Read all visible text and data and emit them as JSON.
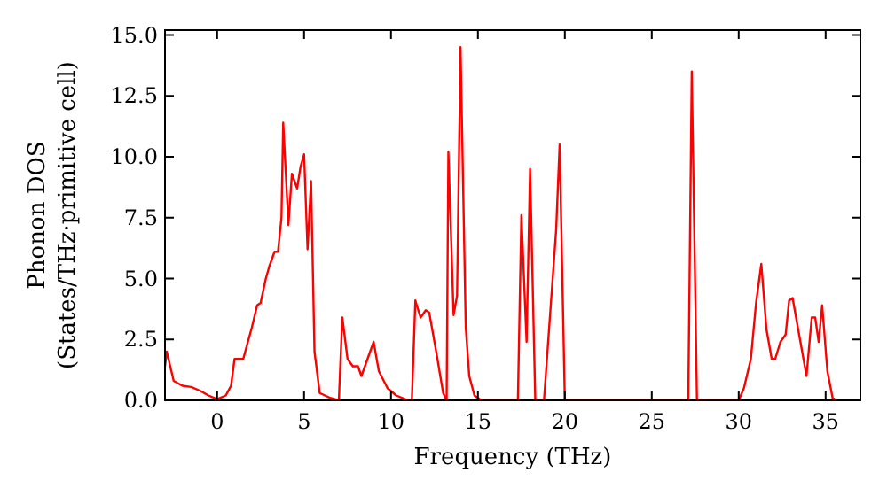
{
  "chart_data": {
    "type": "line",
    "xlabel": "Frequency (THz)",
    "ylabel": "Phonon DOS\n(States/THz·primitive cell)",
    "xlim": [
      -3,
      37
    ],
    "ylim": [
      0,
      15.2
    ],
    "xticks": [
      0,
      5,
      10,
      15,
      20,
      25,
      30,
      35
    ],
    "yticks": [
      {
        "value": 0,
        "label": "0.0"
      },
      {
        "value": 2.5,
        "label": "2.5"
      },
      {
        "value": 5,
        "label": "5.0"
      },
      {
        "value": 7.5,
        "label": "7.5"
      },
      {
        "value": 10,
        "label": "10.0"
      },
      {
        "value": 12.5,
        "label": "12.5"
      },
      {
        "value": 15,
        "label": "15.0"
      }
    ],
    "grid": false,
    "marker": "none",
    "line_style": "solid",
    "series": [
      {
        "color": "#ff0000",
        "x": [
          -3,
          -2.9,
          -2.5,
          -2,
          -1.5,
          -1,
          -0.5,
          0,
          0.5,
          0.8,
          1,
          1.5,
          2,
          2.3,
          2.5,
          2.8,
          3,
          3.3,
          3.5,
          3.7,
          3.8,
          4.1,
          4.3,
          4.6,
          4.8,
          5,
          5.2,
          5.4,
          5.6,
          5.9,
          6.5,
          7,
          7.2,
          7.5,
          7.8,
          8.1,
          8.3,
          9,
          9.3,
          9.8,
          10.3,
          11,
          11.2,
          11.4,
          11.7,
          12,
          12.2,
          12.6,
          13,
          13.2,
          13.3,
          13.6,
          13.8,
          14,
          14.3,
          14.5,
          14.8,
          15.2,
          17.3,
          17.5,
          17.8,
          18,
          18.3,
          18.8,
          19.5,
          19.7,
          20,
          27.1,
          27.3,
          27.6,
          30,
          30.3,
          30.7,
          31,
          31.3,
          31.6,
          31.9,
          32.1,
          32.4,
          32.7,
          32.9,
          33.1,
          33.5,
          33.9,
          34.2,
          34.4,
          34.6,
          34.8,
          35.1,
          35.4,
          35.6
        ],
        "values": [
          1.4,
          2,
          0.8,
          0.6,
          0.55,
          0.4,
          0.2,
          0.05,
          0.2,
          0.6,
          1.7,
          1.7,
          3,
          3.9,
          4,
          5,
          5.5,
          6.1,
          6.1,
          7.5,
          11.4,
          7.2,
          9.3,
          8.7,
          9.6,
          10.1,
          6.2,
          9,
          2,
          0.3,
          0.1,
          0,
          3.4,
          1.7,
          1.4,
          1.4,
          1,
          2.4,
          1.2,
          0.5,
          0.2,
          0,
          0,
          4.1,
          3.4,
          3.7,
          3.6,
          2,
          0.3,
          0,
          10.2,
          3.5,
          4.3,
          14.5,
          3,
          1,
          0.2,
          0,
          0,
          7.6,
          2.4,
          9.5,
          0,
          0,
          7,
          10.5,
          0,
          0,
          13.5,
          0,
          0,
          0.5,
          1.7,
          4,
          5.6,
          2.9,
          1.7,
          1.7,
          2.4,
          2.7,
          4.1,
          4.2,
          2.6,
          1,
          3.4,
          3.4,
          2.4,
          3.9,
          1.2,
          0.1,
          0
        ]
      }
    ]
  }
}
